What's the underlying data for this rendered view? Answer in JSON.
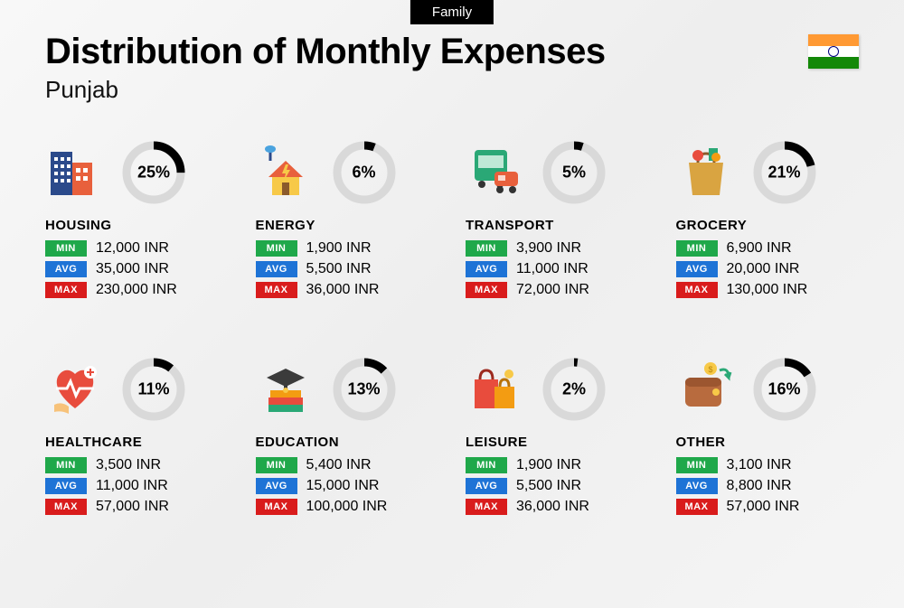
{
  "tag": "Family",
  "title": "Distribution of Monthly Expenses",
  "subtitle": "Punjab",
  "flag": {
    "top_color": "#FF9933",
    "middle_color": "#ffffff",
    "bottom_color": "#138808"
  },
  "badge_colors": {
    "min": "#1fa84a",
    "avg": "#1e73d6",
    "max": "#d91c1c"
  },
  "badge_labels": {
    "min": "MIN",
    "avg": "AVG",
    "max": "MAX"
  },
  "donut": {
    "track_color": "#d9d9d9",
    "fill_color": "#000000",
    "stroke_width": 9
  },
  "currency_suffix": " INR",
  "categories": [
    {
      "key": "housing",
      "name": "HOUSING",
      "percent": 25,
      "min": "12,000",
      "avg": "35,000",
      "max": "230,000",
      "icon": "housing-icon"
    },
    {
      "key": "energy",
      "name": "ENERGY",
      "percent": 6,
      "min": "1,900",
      "avg": "5,500",
      "max": "36,000",
      "icon": "energy-icon"
    },
    {
      "key": "transport",
      "name": "TRANSPORT",
      "percent": 5,
      "min": "3,900",
      "avg": "11,000",
      "max": "72,000",
      "icon": "transport-icon"
    },
    {
      "key": "grocery",
      "name": "GROCERY",
      "percent": 21,
      "min": "6,900",
      "avg": "20,000",
      "max": "130,000",
      "icon": "grocery-icon"
    },
    {
      "key": "healthcare",
      "name": "HEALTHCARE",
      "percent": 11,
      "min": "3,500",
      "avg": "11,000",
      "max": "57,000",
      "icon": "healthcare-icon"
    },
    {
      "key": "education",
      "name": "EDUCATION",
      "percent": 13,
      "min": "5,400",
      "avg": "15,000",
      "max": "100,000",
      "icon": "education-icon"
    },
    {
      "key": "leisure",
      "name": "LEISURE",
      "percent": 2,
      "min": "1,900",
      "avg": "5,500",
      "max": "36,000",
      "icon": "leisure-icon"
    },
    {
      "key": "other",
      "name": "OTHER",
      "percent": 16,
      "min": "3,100",
      "avg": "8,800",
      "max": "57,000",
      "icon": "other-icon"
    }
  ]
}
